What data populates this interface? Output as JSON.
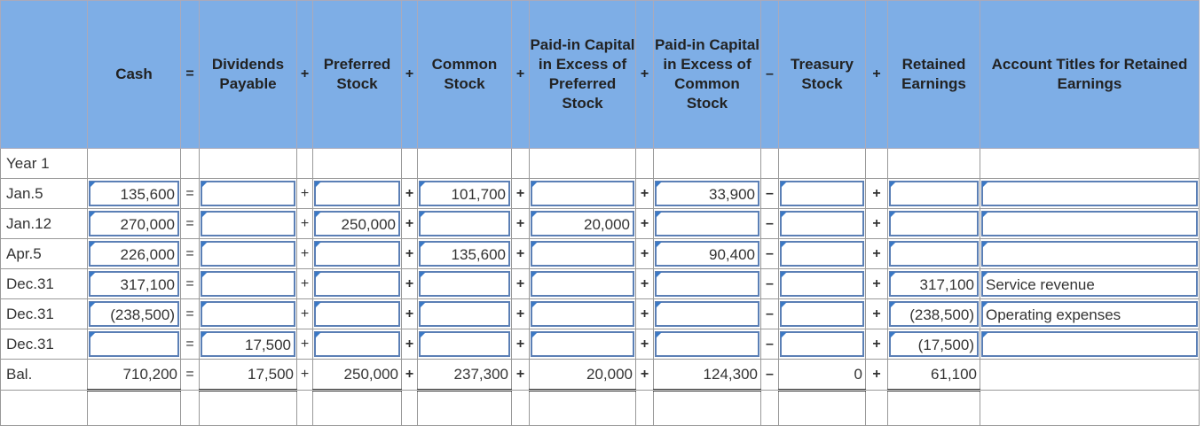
{
  "header": {
    "cols": [
      "Cash",
      "Dividends Payable",
      "Preferred Stock",
      "Common Stock",
      "Paid-in Capital in Excess of Preferred Stock",
      "Paid-in Capital in Excess of Common Stock",
      "Treasury Stock",
      "Retained Earnings",
      "Account Titles for Retained Earnings"
    ],
    "ops": [
      "=",
      "+",
      "+",
      "+",
      "+",
      "–",
      "+"
    ]
  },
  "year_label": "Year 1",
  "rows": [
    {
      "label": "Jan.5",
      "ops": [
        "=",
        "+",
        "+",
        "+",
        "+",
        "–",
        "+"
      ],
      "cells": [
        "135,600",
        "",
        "",
        "101,700",
        "",
        "33,900",
        "",
        "",
        ""
      ]
    },
    {
      "label": "Jan.12",
      "ops": [
        "=",
        "+",
        "+",
        "+",
        "+",
        "–",
        "+"
      ],
      "cells": [
        "270,000",
        "",
        "250,000",
        "",
        "20,000",
        "",
        "",
        "",
        ""
      ]
    },
    {
      "label": "Apr.5",
      "ops": [
        "=",
        "+",
        "+",
        "+",
        "+",
        "–",
        "+"
      ],
      "cells": [
        "226,000",
        "",
        "",
        "135,600",
        "",
        "90,400",
        "",
        "",
        ""
      ]
    },
    {
      "label": "Dec.31",
      "ops": [
        "=",
        "+",
        "+",
        "+",
        "+",
        "–",
        "+"
      ],
      "cells": [
        "317,100",
        "",
        "",
        "",
        "",
        "",
        "",
        "317,100",
        "Service revenue"
      ]
    },
    {
      "label": "Dec.31",
      "ops": [
        "=",
        "+",
        "+",
        "+",
        "+",
        "–",
        "+"
      ],
      "cells": [
        "(238,500)",
        "",
        "",
        "",
        "",
        "",
        "",
        "(238,500)",
        "Operating expenses"
      ]
    },
    {
      "label": "Dec.31",
      "ops": [
        "=",
        "+",
        "+",
        "+",
        "+",
        "–",
        "+"
      ],
      "cells": [
        "",
        "17,500",
        "",
        "",
        "",
        "",
        "",
        "(17,500)",
        ""
      ]
    }
  ],
  "balance": {
    "label": "Bal.",
    "ops": [
      "=",
      "+",
      "+",
      "+",
      "+",
      "–",
      "+"
    ],
    "cells": [
      "710,200",
      "17,500",
      "250,000",
      "237,300",
      "20,000",
      "124,300",
      "0",
      "61,100",
      ""
    ]
  },
  "colors": {
    "header_bg": "#7eaee6",
    "input_border": "#5b7fb5"
  }
}
